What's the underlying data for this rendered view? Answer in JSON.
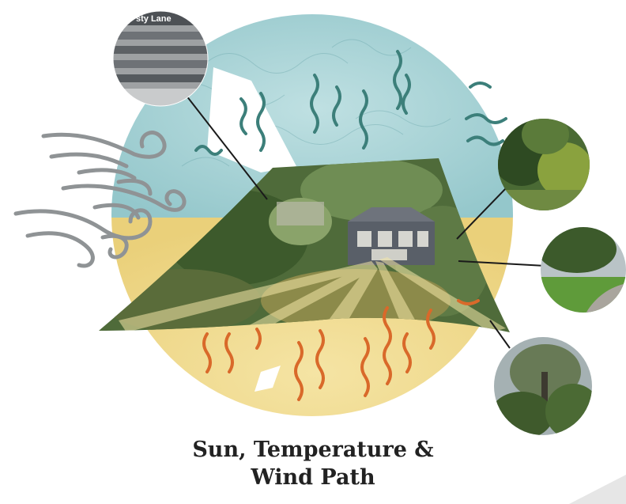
{
  "caption": {
    "line1": "Sun, Temperature &",
    "line2": "Wind Path"
  },
  "inset_photos": {
    "street_view": {
      "sign_text": "sty Lane"
    }
  },
  "colors": {
    "sky": "#a9d4d6",
    "sun": "#f1dc93",
    "wind": "#8f9395",
    "heat_lines": "#d9692a",
    "air_lines": "#3c7f7a",
    "caption": "#222222"
  },
  "icons": [
    "wind-swirl-icon",
    "heat-wave-icon",
    "air-wave-icon",
    "sun-ray-icon",
    "house-icon"
  ]
}
